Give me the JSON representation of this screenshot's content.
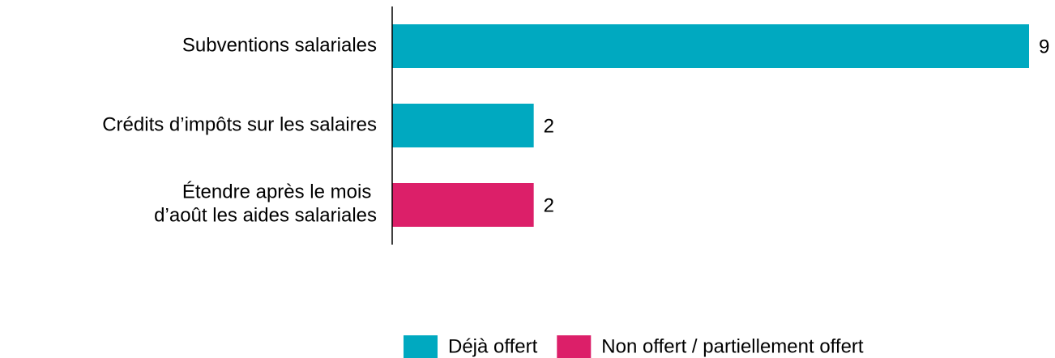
{
  "chart_data": {
    "type": "hbar",
    "categories": [
      "Subventions salariales",
      "Crédits d’impôts sur les salaires",
      "Étendre après le mois \nd’août les aides salariales"
    ],
    "series": [
      {
        "name": "Déjà offert",
        "color": "#00a9c0",
        "values": [
          9,
          2,
          null
        ]
      },
      {
        "name": "Non offert / partiellement offert",
        "color": "#dc1f69",
        "values": [
          null,
          null,
          2
        ]
      }
    ],
    "xlim": [
      0,
      9
    ],
    "legend": "bottom"
  }
}
